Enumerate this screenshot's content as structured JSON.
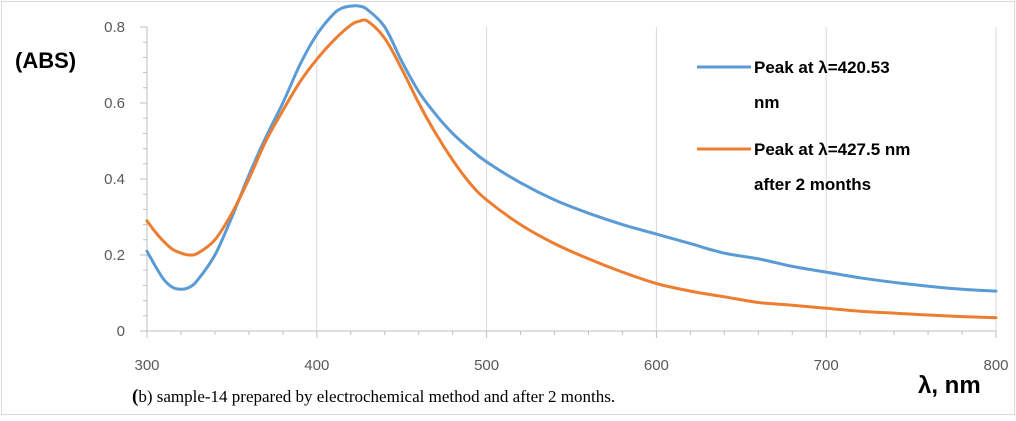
{
  "chart_data": {
    "type": "line",
    "ylabel": "(ABS)",
    "xlabel": "λ, nm",
    "xlim": [
      300,
      800
    ],
    "ylim": [
      0,
      0.8
    ],
    "x_ticks": [
      300,
      400,
      500,
      600,
      700,
      800
    ],
    "y_ticks": [
      0,
      0.2,
      0.4,
      0.6,
      0.8
    ],
    "x_tick_labels": [
      "300",
      "400",
      "500",
      "600",
      "700",
      "800"
    ],
    "y_tick_labels": [
      "0",
      "0.2",
      "0.4",
      "0.6",
      "0.8"
    ],
    "grid": "vertical major gridlines",
    "legend_position": "top-right",
    "series": [
      {
        "name": "Peak at λ=420.53 nm",
        "legend_lines": [
          "Peak at λ=420.53",
          "nm"
        ],
        "color": "#5b9bd5",
        "points": [
          [
            300,
            0.21
          ],
          [
            305,
            0.17
          ],
          [
            310,
            0.135
          ],
          [
            315,
            0.115
          ],
          [
            320,
            0.11
          ],
          [
            325,
            0.115
          ],
          [
            330,
            0.135
          ],
          [
            340,
            0.2
          ],
          [
            350,
            0.3
          ],
          [
            360,
            0.41
          ],
          [
            370,
            0.51
          ],
          [
            380,
            0.6
          ],
          [
            390,
            0.7
          ],
          [
            400,
            0.78
          ],
          [
            410,
            0.835
          ],
          [
            415,
            0.85
          ],
          [
            420,
            0.855
          ],
          [
            425,
            0.855
          ],
          [
            430,
            0.845
          ],
          [
            440,
            0.8
          ],
          [
            450,
            0.71
          ],
          [
            460,
            0.63
          ],
          [
            470,
            0.57
          ],
          [
            480,
            0.52
          ],
          [
            490,
            0.48
          ],
          [
            500,
            0.445
          ],
          [
            520,
            0.39
          ],
          [
            540,
            0.345
          ],
          [
            560,
            0.31
          ],
          [
            580,
            0.28
          ],
          [
            600,
            0.255
          ],
          [
            620,
            0.23
          ],
          [
            640,
            0.205
          ],
          [
            660,
            0.19
          ],
          [
            680,
            0.17
          ],
          [
            700,
            0.155
          ],
          [
            720,
            0.14
          ],
          [
            740,
            0.128
          ],
          [
            760,
            0.118
          ],
          [
            780,
            0.11
          ],
          [
            800,
            0.105
          ]
        ]
      },
      {
        "name": "Peak at λ=427.5 nm after 2 months",
        "legend_lines": [
          "Peak at λ=427.5 nm",
          "after 2 months"
        ],
        "color": "#ed7d31",
        "points": [
          [
            300,
            0.29
          ],
          [
            305,
            0.26
          ],
          [
            310,
            0.235
          ],
          [
            315,
            0.215
          ],
          [
            320,
            0.205
          ],
          [
            325,
            0.2
          ],
          [
            330,
            0.205
          ],
          [
            340,
            0.24
          ],
          [
            350,
            0.31
          ],
          [
            360,
            0.4
          ],
          [
            370,
            0.5
          ],
          [
            380,
            0.58
          ],
          [
            390,
            0.655
          ],
          [
            400,
            0.715
          ],
          [
            410,
            0.765
          ],
          [
            420,
            0.805
          ],
          [
            425,
            0.815
          ],
          [
            430,
            0.815
          ],
          [
            440,
            0.77
          ],
          [
            450,
            0.69
          ],
          [
            460,
            0.6
          ],
          [
            470,
            0.52
          ],
          [
            480,
            0.45
          ],
          [
            490,
            0.39
          ],
          [
            500,
            0.345
          ],
          [
            520,
            0.28
          ],
          [
            540,
            0.23
          ],
          [
            560,
            0.19
          ],
          [
            580,
            0.155
          ],
          [
            600,
            0.125
          ],
          [
            620,
            0.105
          ],
          [
            640,
            0.09
          ],
          [
            660,
            0.075
          ],
          [
            680,
            0.068
          ],
          [
            700,
            0.06
          ],
          [
            720,
            0.052
          ],
          [
            740,
            0.047
          ],
          [
            760,
            0.042
          ],
          [
            780,
            0.038
          ],
          [
            800,
            0.035
          ]
        ]
      }
    ]
  },
  "caption": {
    "lead": "(",
    "text": "b) sample-14 prepared by electrochemical method and after 2 months."
  },
  "colors": {
    "border": "#d9d9d9",
    "gridline": "#d9d9d9",
    "axis": "#bfbfbf"
  }
}
